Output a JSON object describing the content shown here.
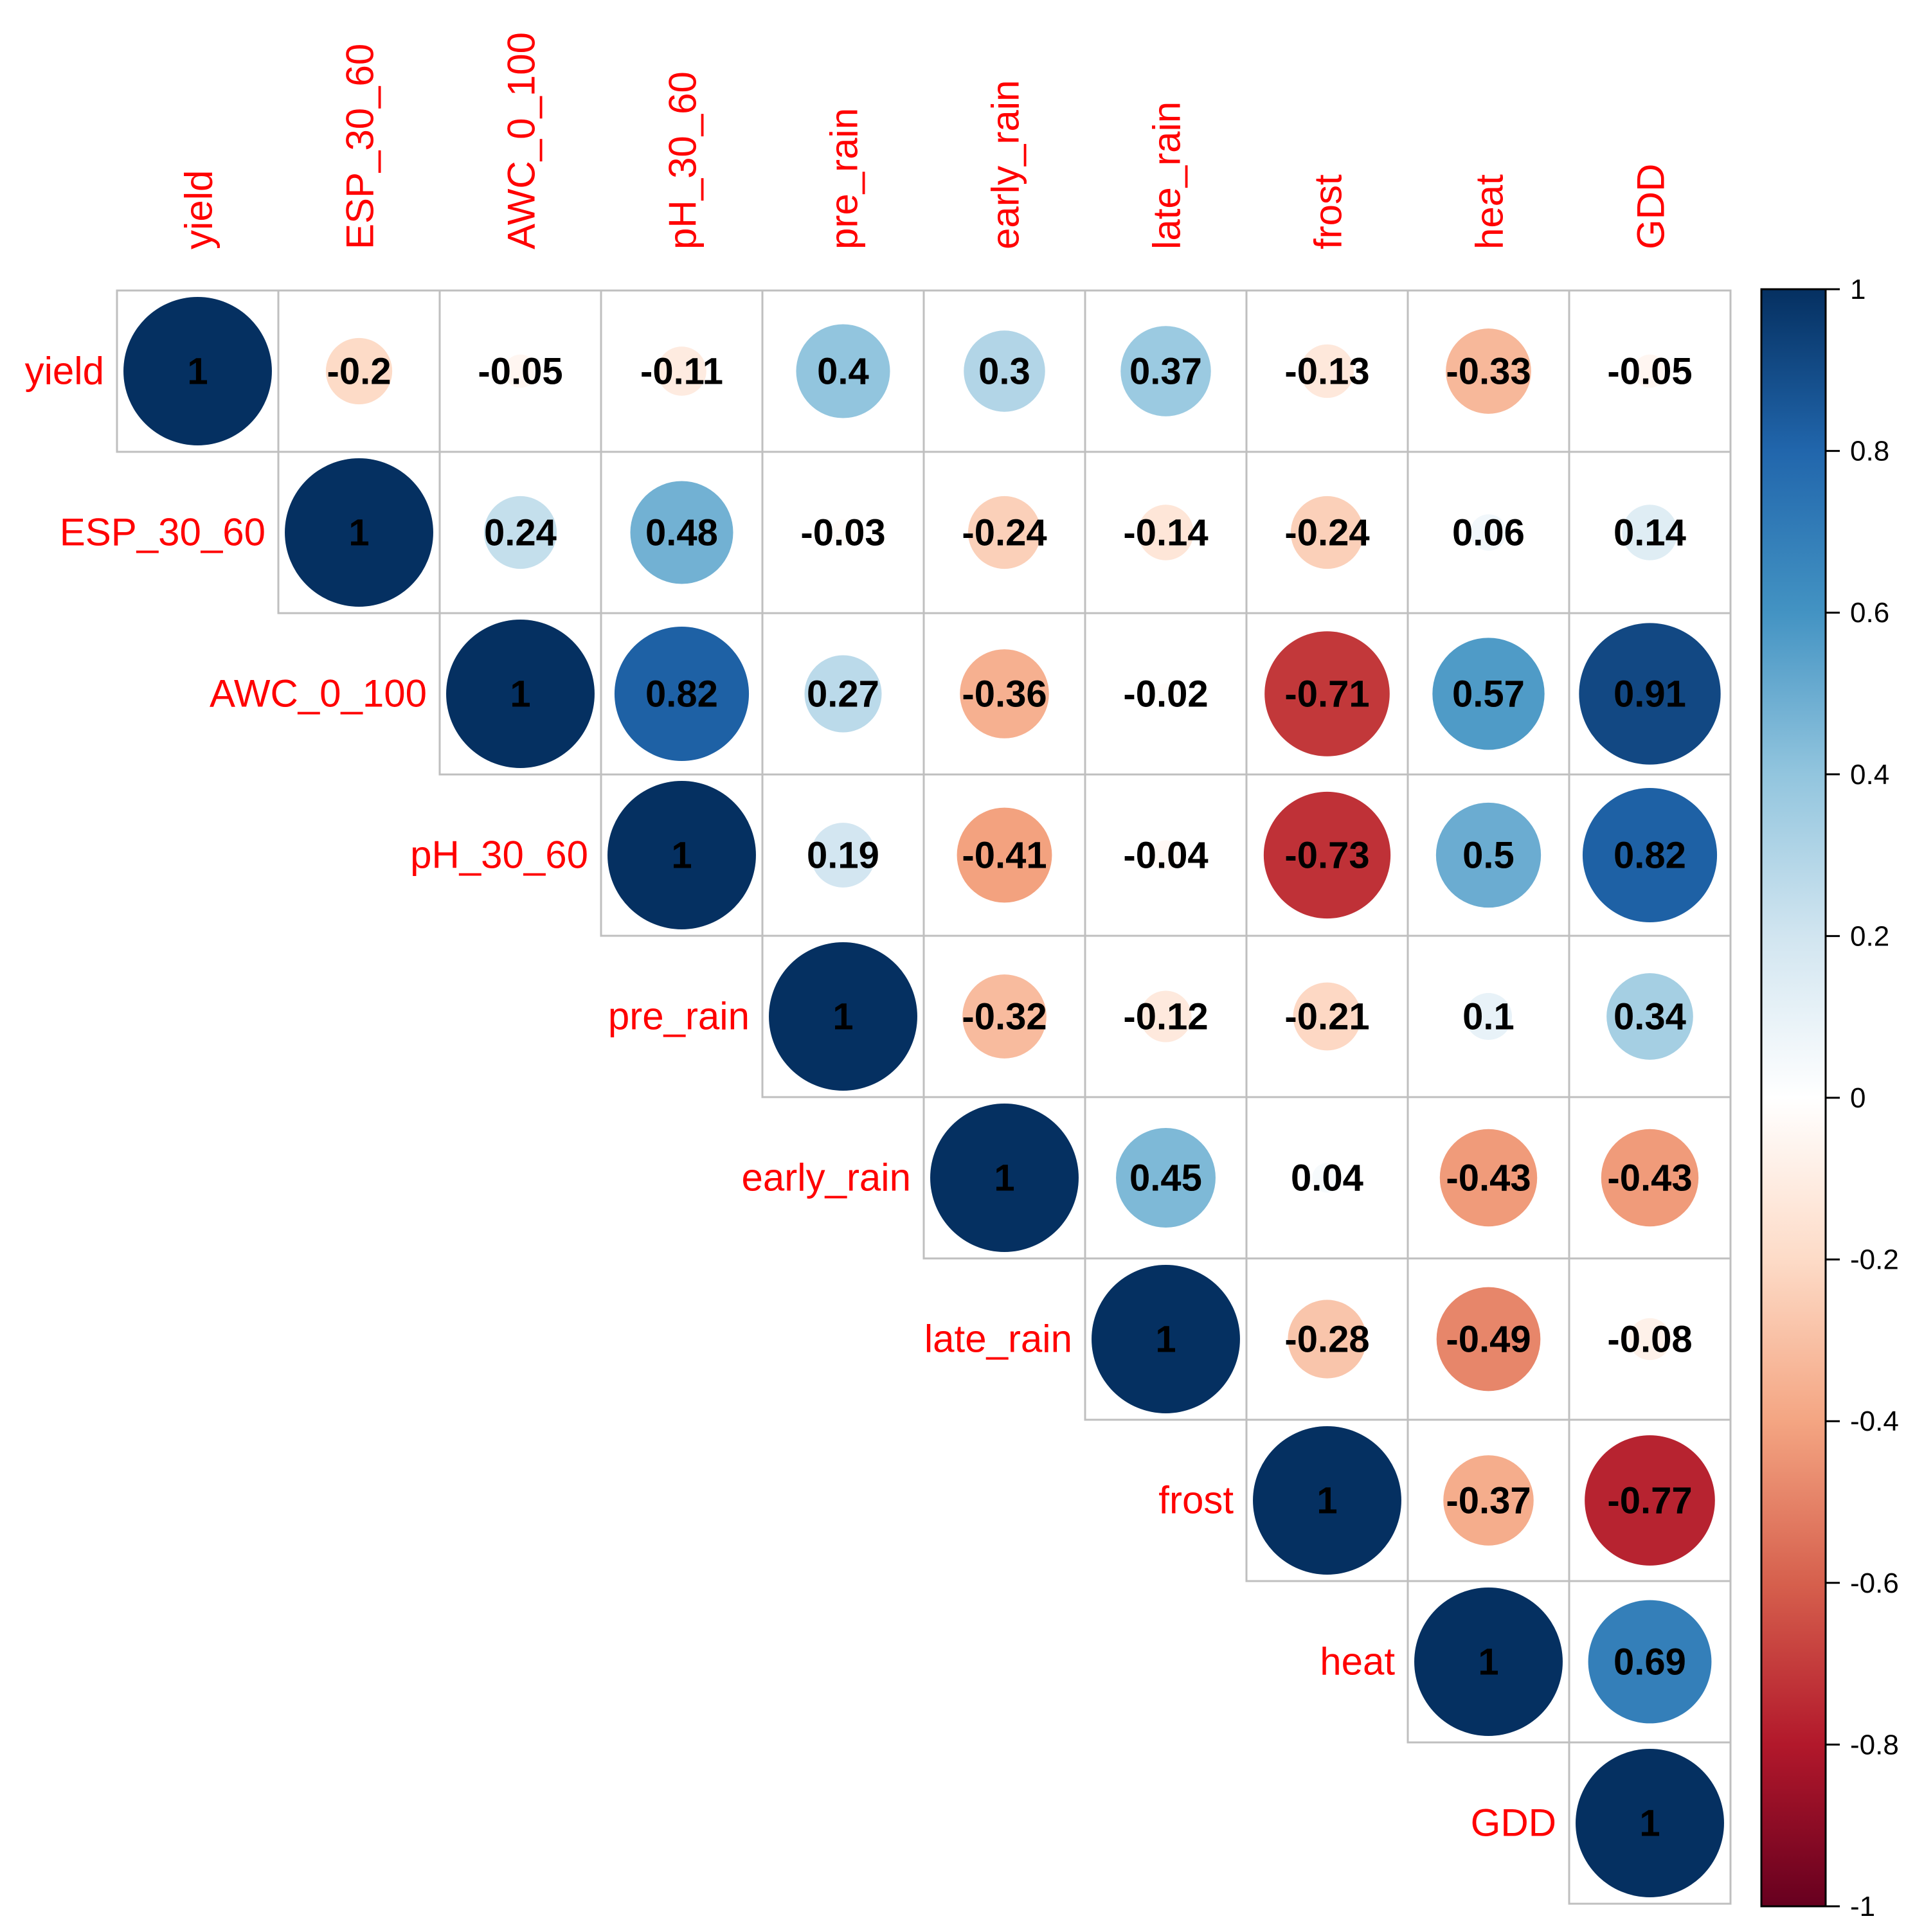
{
  "chart_data": {
    "type": "heatmap",
    "style": "correlation-circles-upper-triangle",
    "variables": [
      "yield",
      "ESP_30_60",
      "AWC_0_100",
      "pH_30_60",
      "pre_rain",
      "early_rain",
      "late_rain",
      "frost",
      "heat",
      "GDD"
    ],
    "matrix": [
      [
        1,
        -0.2,
        -0.05,
        -0.11,
        0.4,
        0.3,
        0.37,
        -0.13,
        -0.33,
        -0.05
      ],
      [
        null,
        1,
        0.24,
        0.48,
        -0.03,
        -0.24,
        -0.14,
        -0.24,
        0.06,
        0.14
      ],
      [
        null,
        null,
        1,
        0.82,
        0.27,
        -0.36,
        -0.02,
        -0.71,
        0.57,
        0.91
      ],
      [
        null,
        null,
        null,
        1,
        0.19,
        -0.41,
        -0.04,
        -0.73,
        0.5,
        0.82
      ],
      [
        null,
        null,
        null,
        null,
        1,
        -0.32,
        -0.12,
        -0.21,
        0.1,
        0.34
      ],
      [
        null,
        null,
        null,
        null,
        null,
        1,
        0.45,
        0.04,
        -0.43,
        -0.43
      ],
      [
        null,
        null,
        null,
        null,
        null,
        null,
        1,
        -0.28,
        -0.49,
        -0.08
      ],
      [
        null,
        null,
        null,
        null,
        null,
        null,
        null,
        1,
        -0.37,
        -0.77
      ],
      [
        null,
        null,
        null,
        null,
        null,
        null,
        null,
        null,
        1,
        0.69
      ],
      [
        null,
        null,
        null,
        null,
        null,
        null,
        null,
        null,
        null,
        1
      ]
    ],
    "value_labels": [
      [
        "1",
        "-0.2",
        "-0.05",
        "-0.11",
        "0.4",
        "0.3",
        "0.37",
        "-0.13",
        "-0.33",
        "-0.05"
      ],
      [
        null,
        "1",
        "0.24",
        "0.48",
        "-0.03",
        "-0.24",
        "-0.14",
        "-0.24",
        "0.06",
        "0.14"
      ],
      [
        null,
        null,
        "1",
        "0.82",
        "0.27",
        "-0.36",
        "-0.02",
        "-0.71",
        "0.57",
        "0.91"
      ],
      [
        null,
        null,
        null,
        "1",
        "0.19",
        "-0.41",
        "-0.04",
        "-0.73",
        "0.5",
        "0.82"
      ],
      [
        null,
        null,
        null,
        null,
        "1",
        "-0.32",
        "-0.12",
        "-0.21",
        "0.1",
        "0.34"
      ],
      [
        null,
        null,
        null,
        null,
        null,
        "1",
        "0.45",
        "0.04",
        "-0.43",
        "-0.43"
      ],
      [
        null,
        null,
        null,
        null,
        null,
        null,
        "1",
        "-0.28",
        "-0.49",
        "-0.08"
      ],
      [
        null,
        null,
        null,
        null,
        null,
        null,
        null,
        "1",
        "-0.37",
        "-0.77"
      ],
      [
        null,
        null,
        null,
        null,
        null,
        null,
        null,
        null,
        "1",
        "0.69"
      ],
      [
        null,
        null,
        null,
        null,
        null,
        null,
        null,
        null,
        null,
        "1"
      ]
    ],
    "colorbar": {
      "range": [
        -1,
        1
      ],
      "ticks": [
        1,
        0.8,
        0.6,
        0.4,
        0.2,
        0,
        -0.2,
        -0.4,
        -0.6,
        -0.8,
        -1
      ],
      "tick_labels": [
        "1",
        "0.8",
        "0.6",
        "0.4",
        "0.2",
        "0",
        "-0.2",
        "-0.4",
        "-0.6",
        "-0.8",
        "-1"
      ],
      "placement": "right",
      "colors": [
        "#67001F",
        "#B2182B",
        "#D6604D",
        "#F4A582",
        "#FDDBC7",
        "#FFFFFF",
        "#D1E5F0",
        "#92C5DE",
        "#4393C3",
        "#2166AC",
        "#053061"
      ],
      "colors_note": "stops ordered from -1 to 1"
    },
    "label_color": "#ff0000",
    "grid_color": "#bfbfbf"
  }
}
